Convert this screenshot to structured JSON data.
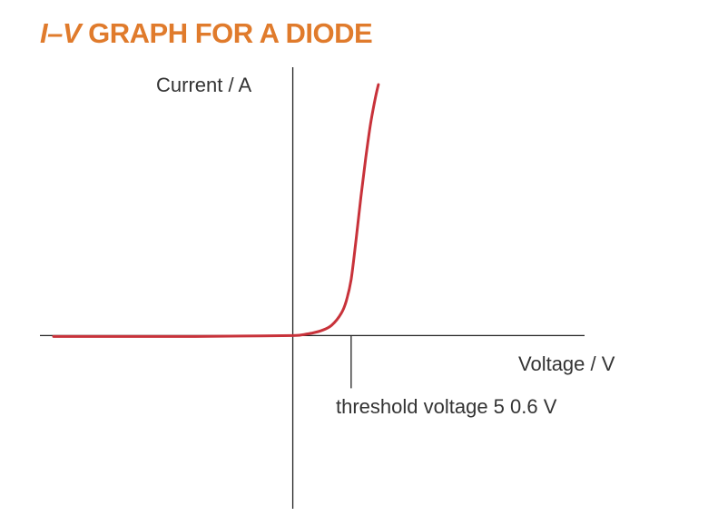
{
  "chart_data": {
    "type": "line",
    "title_italic_part": "I–V",
    "title_rest": " GRAPH FOR A DIODE",
    "xlabel": "Voltage / V",
    "ylabel": "Current / A",
    "annotation": "threshold voltage 5 0.6 V",
    "threshold_voltage": 0.6,
    "xlim": [
      -2.6,
      3.0
    ],
    "ylim": [
      -2.0,
      3.1
    ],
    "grid": false,
    "series": [
      {
        "color": "#c8323a",
        "x": [
          -2.46,
          -2.0,
          -1.5,
          -1.0,
          -0.5,
          0.0,
          0.1,
          0.2,
          0.3,
          0.4,
          0.5,
          0.55,
          0.6,
          0.65,
          0.7,
          0.75,
          0.8,
          0.85,
          0.88
        ],
        "y": [
          -0.01,
          -0.01,
          -0.01,
          -0.01,
          -0.005,
          0.0,
          0.01,
          0.03,
          0.06,
          0.12,
          0.26,
          0.4,
          0.65,
          1.1,
          1.6,
          2.05,
          2.45,
          2.75,
          2.9
        ]
      }
    ],
    "colors": {
      "title": "#e07b2c",
      "axes": "#222222",
      "curve": "#c8323a"
    }
  }
}
